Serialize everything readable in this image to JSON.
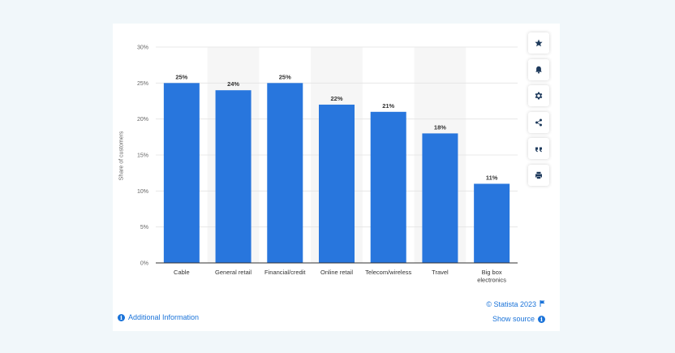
{
  "chart_data": {
    "type": "bar",
    "categories": [
      "Cable",
      "General retail",
      "Financial/credit",
      "Online retail",
      "Telecom/wireless",
      "Travel",
      "Big box electronics"
    ],
    "category_lines": [
      [
        "Cable"
      ],
      [
        "General retail"
      ],
      [
        "Financial/credit"
      ],
      [
        "Online retail"
      ],
      [
        "Telecom/wireless"
      ],
      [
        "Travel"
      ],
      [
        "Big box",
        "electronics"
      ]
    ],
    "values": [
      25,
      24,
      25,
      22,
      21,
      18,
      11
    ],
    "value_labels": [
      "25%",
      "24%",
      "25%",
      "22%",
      "21%",
      "18%",
      "11%"
    ],
    "ylabel": "Share of customers",
    "ylim": [
      0,
      30
    ],
    "yticks": [
      0,
      5,
      10,
      15,
      20,
      25,
      30
    ],
    "ytick_labels": [
      "0%",
      "5%",
      "10%",
      "15%",
      "20%",
      "25%",
      "30%"
    ],
    "grid": true,
    "bar_color": "#2876dd"
  },
  "toolbar": {
    "icons": [
      "star-icon",
      "bell-icon",
      "gear-icon",
      "share-icon",
      "quote-icon",
      "print-icon"
    ]
  },
  "footer": {
    "additional_info": "Additional Information",
    "credit": "© Statista 2023",
    "show_source": "Show source"
  },
  "colors": {
    "accent": "#1a73d9",
    "page_background": "#f1f7fa"
  }
}
